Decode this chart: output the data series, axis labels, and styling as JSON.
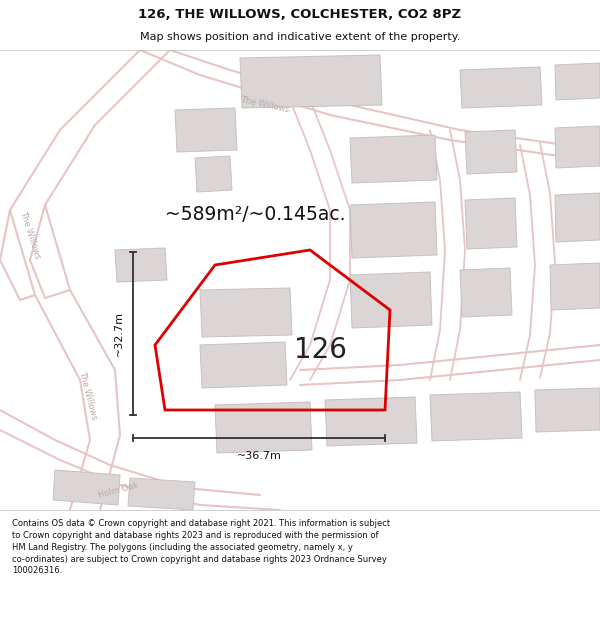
{
  "title": "126, THE WILLOWS, COLCHESTER, CO2 8PZ",
  "subtitle": "Map shows position and indicative extent of the property.",
  "footer": "Contains OS data © Crown copyright and database right 2021. This information is subject to Crown copyright and database rights 2023 and is reproduced with the permission of HM Land Registry. The polygons (including the associated geometry, namely x, y co-ordinates) are subject to Crown copyright and database rights 2023 Ordnance Survey 100026316.",
  "area_label": "~589m²/~0.145ac.",
  "number_label": "126",
  "width_label": "~36.7m",
  "height_label": "~32.7m",
  "map_bg": "#f9f6f6",
  "road_color": "#f2d8d8",
  "building_color": "#dbd5d5",
  "building_edge": "#c8c0c0",
  "plot_color": "#dd0000",
  "dim_color": "#303030",
  "street_label_color": "#b8aaaa",
  "title_fontsize": 9.5,
  "subtitle_fontsize": 8.0,
  "footer_fontsize": 6.0
}
